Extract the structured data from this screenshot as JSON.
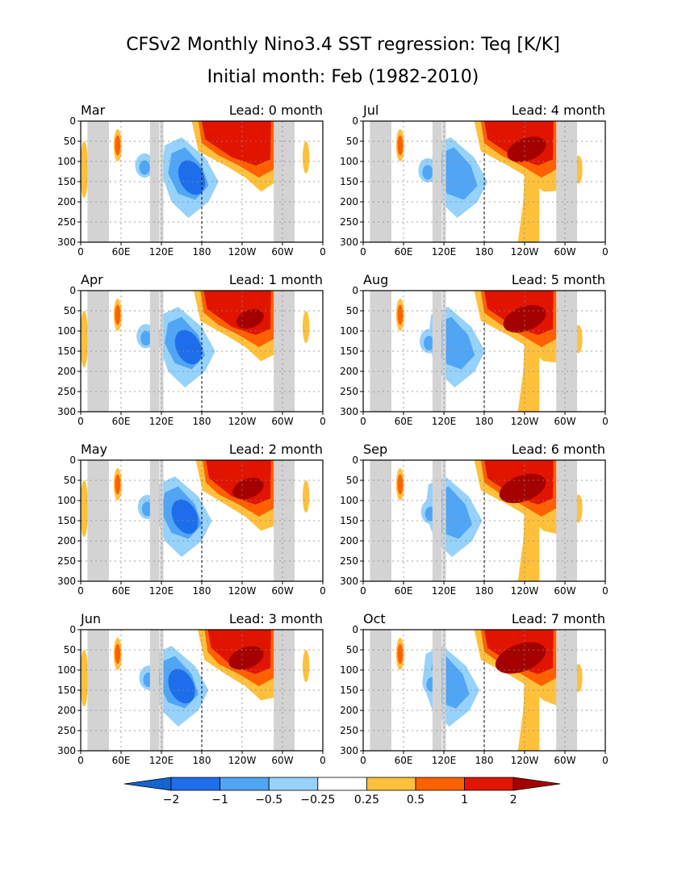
{
  "title": "CFSv2 Monthly Nino3.4 SST regression: Teq [K/K]",
  "subtitle": "Initial month: Feb (1982-2010)",
  "colors": {
    "neg_extreme": "#1464d2",
    "neg_2": "#1e6eeb",
    "neg_1": "#50a5f5",
    "neg_05": "#96d2fa",
    "pos_025": "#ffc03c",
    "pos_05": "#ff6000",
    "pos_1": "#e11400",
    "pos_2": "#a50000",
    "land": "#d3d3d3"
  },
  "chart_data": [
    {
      "type": "heatmap",
      "month": "Mar",
      "lead": "Lead: 0 month"
    },
    {
      "type": "heatmap",
      "month": "Jul",
      "lead": "Lead: 4 month"
    },
    {
      "type": "heatmap",
      "month": "Apr",
      "lead": "Lead: 1 month"
    },
    {
      "type": "heatmap",
      "month": "Aug",
      "lead": "Lead: 5 month"
    },
    {
      "type": "heatmap",
      "month": "May",
      "lead": "Lead: 2 month"
    },
    {
      "type": "heatmap",
      "month": "Sep",
      "lead": "Lead: 6 month"
    },
    {
      "type": "heatmap",
      "month": "Jun",
      "lead": "Lead: 3 month"
    },
    {
      "type": "heatmap",
      "month": "Oct",
      "lead": "Lead: 7 month"
    }
  ],
  "axes": {
    "x_ticks": [
      "0",
      "60E",
      "120E",
      "180",
      "120W",
      "60W",
      "0"
    ],
    "y_ticks": [
      "0",
      "50",
      "100",
      "150",
      "200",
      "250",
      "300"
    ],
    "x_range": [
      0,
      360
    ],
    "y_range": [
      0,
      300
    ],
    "y_inverted": true,
    "grid": true,
    "dateline_lon": 180
  },
  "land_lon_ranges": [
    [
      10,
      42
    ],
    [
      103,
      117
    ],
    [
      118,
      123
    ],
    [
      287,
      300
    ],
    [
      300,
      318
    ]
  ],
  "colorbar": {
    "levels": [
      "-2",
      "-1",
      "-0.5",
      "-0.25",
      "0.25",
      "0.5",
      "1",
      "2"
    ]
  }
}
